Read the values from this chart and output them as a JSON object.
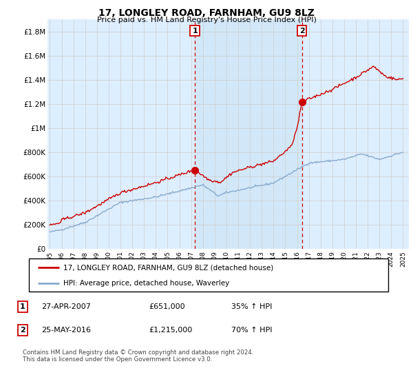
{
  "title": "17, LONGLEY ROAD, FARNHAM, GU9 8LZ",
  "subtitle": "Price paid vs. HM Land Registry's House Price Index (HPI)",
  "ylabel_ticks": [
    "£0",
    "£200K",
    "£400K",
    "£600K",
    "£800K",
    "£1M",
    "£1.2M",
    "£1.4M",
    "£1.6M",
    "£1.8M"
  ],
  "ytick_values": [
    0,
    200000,
    400000,
    600000,
    800000,
    1000000,
    1200000,
    1400000,
    1600000,
    1800000
  ],
  "ylim": [
    0,
    1900000
  ],
  "xlim_start": 1994.8,
  "xlim_end": 2025.5,
  "sale1_year": 2007.32,
  "sale1_price": 651000,
  "sale2_year": 2016.42,
  "sale2_price": 1215000,
  "vline1_year": 2007.32,
  "vline2_year": 2016.42,
  "line_color_red": "#cc0000",
  "line_color_blue": "#88aacc",
  "marker_color": "#cc0000",
  "vline_color": "#cc0000",
  "grid_color": "#cccccc",
  "bg_color": "#ddeeff",
  "bg_highlight_color": "#cce0f5",
  "legend_label_red": "17, LONGLEY ROAD, FARNHAM, GU9 8LZ (detached house)",
  "legend_label_blue": "HPI: Average price, detached house, Waverley",
  "table_row1": [
    "1",
    "27-APR-2007",
    "£651,000",
    "35% ↑ HPI"
  ],
  "table_row2": [
    "2",
    "25-MAY-2016",
    "£1,215,000",
    "70% ↑ HPI"
  ],
  "footer": "Contains HM Land Registry data © Crown copyright and database right 2024.\nThis data is licensed under the Open Government Licence v3.0.",
  "xlabel_years": [
    1995,
    1996,
    1997,
    1998,
    1999,
    2000,
    2001,
    2002,
    2003,
    2004,
    2005,
    2006,
    2007,
    2008,
    2009,
    2010,
    2011,
    2012,
    2013,
    2014,
    2015,
    2016,
    2017,
    2018,
    2019,
    2020,
    2021,
    2022,
    2023,
    2024,
    2025
  ]
}
